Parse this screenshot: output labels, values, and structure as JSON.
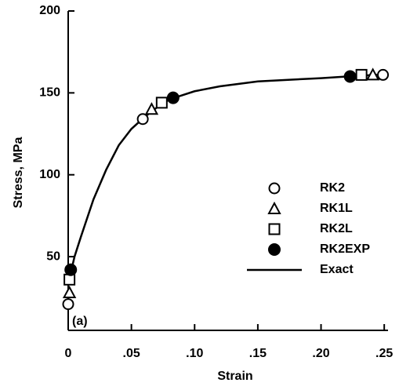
{
  "chart_data": {
    "type": "scatter",
    "xlabel": "Strain",
    "ylabel": "Stress, MPa",
    "annotation": "(a)",
    "xlim": [
      0,
      0.253
    ],
    "ylim": [
      5,
      200
    ],
    "xticks": [
      0,
      {
        "value": 0.05,
        "label": ".05"
      },
      {
        "value": 0.1,
        "label": ".10"
      },
      {
        "value": 0.15,
        "label": ".15"
      },
      {
        "value": 0.2,
        "label": ".20"
      },
      {
        "value": 0.25,
        "label": ".25"
      }
    ],
    "yticks": [
      50,
      100,
      150,
      200
    ],
    "grid": false,
    "series": [
      {
        "name": "RK2",
        "color": "#000000",
        "marker": "open-circle",
        "x": [
          0,
          0.059,
          0.249
        ],
        "values": [
          21,
          134,
          161
        ]
      },
      {
        "name": "RK1L",
        "color": "#000000",
        "marker": "open-triangle",
        "x": [
          0.001,
          0.066,
          0.241
        ],
        "values": [
          28,
          140,
          161
        ]
      },
      {
        "name": "RK2L",
        "color": "#000000",
        "marker": "open-square",
        "x": [
          0.001,
          0.074,
          0.232
        ],
        "values": [
          36,
          144,
          161
        ]
      },
      {
        "name": "RK2EXP",
        "color": "#000000",
        "marker": "filled-circle",
        "x": [
          0.002,
          0.083,
          0.223
        ],
        "values": [
          42,
          147,
          160
        ]
      },
      {
        "name": "Exact",
        "color": "#000000",
        "marker": "line",
        "x": [
          0.002,
          0.005,
          0.01,
          0.02,
          0.03,
          0.04,
          0.05,
          0.06,
          0.07,
          0.08,
          0.1,
          0.12,
          0.15,
          0.2,
          0.23,
          0.245
        ],
        "values": [
          40,
          50,
          62,
          85,
          103,
          118,
          128,
          135,
          141,
          146,
          151,
          154,
          157,
          159,
          160.5,
          161
        ]
      }
    ]
  }
}
